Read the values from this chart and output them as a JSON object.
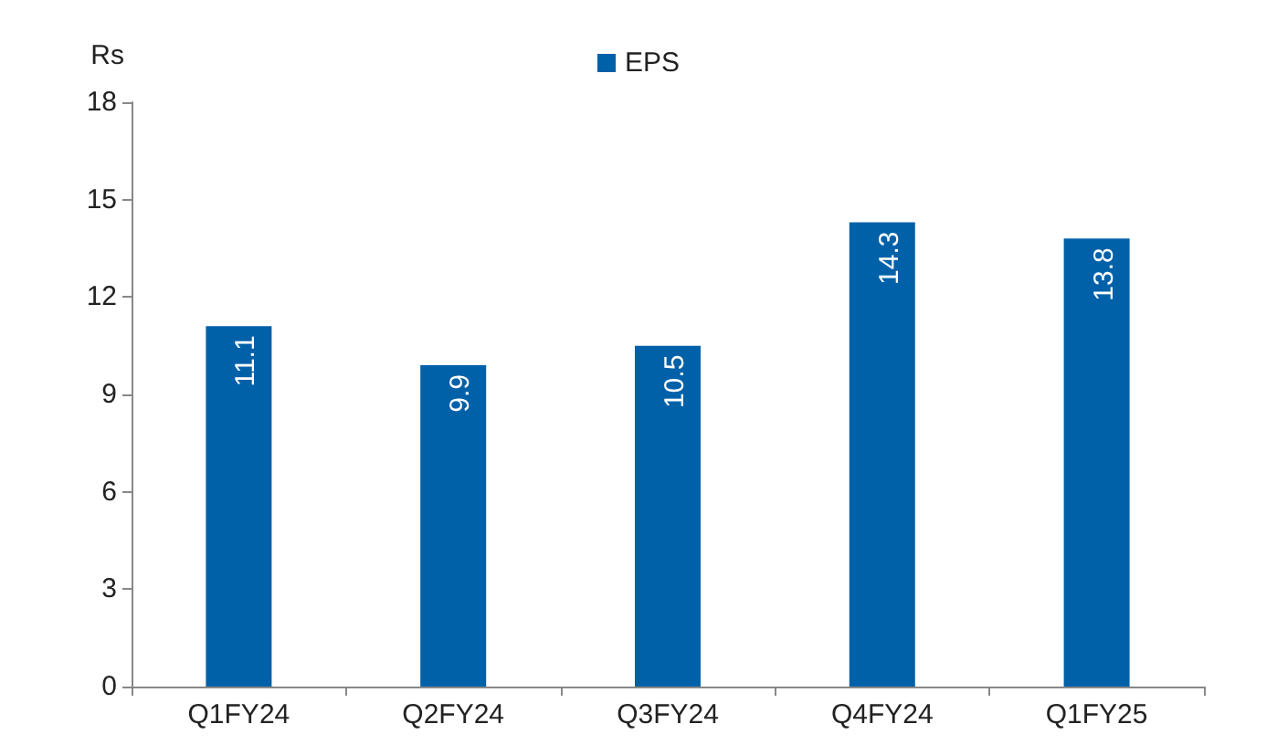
{
  "chart_data": {
    "type": "bar",
    "ylabel": "Rs",
    "categories": [
      "Q1FY24",
      "Q2FY24",
      "Q3FY24",
      "Q4FY24",
      "Q1FY25"
    ],
    "series": [
      {
        "name": "EPS",
        "color": "#0060a8",
        "values": [
          11.1,
          9.9,
          10.5,
          14.3,
          13.8
        ]
      }
    ],
    "ylim": [
      0,
      18
    ],
    "yticks": [
      0,
      3,
      6,
      9,
      12,
      15,
      18
    ],
    "grid": false,
    "legend": "top",
    "data_labels": true
  }
}
